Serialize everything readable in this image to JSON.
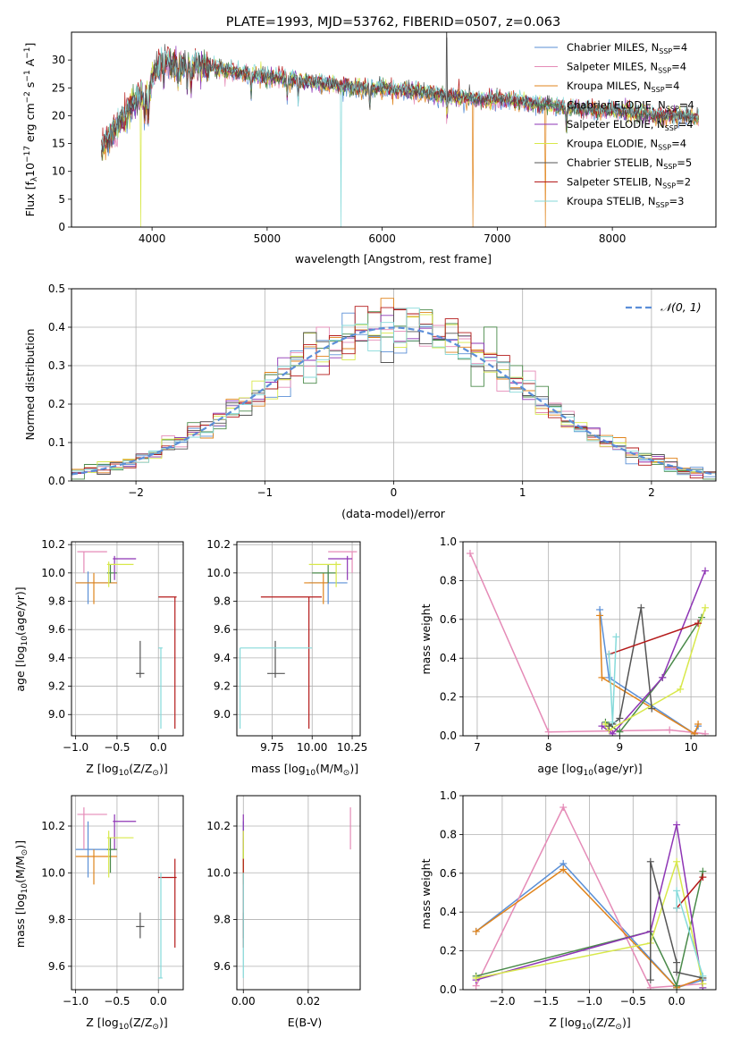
{
  "colors": {
    "chabrier_miles": "#5a8fd6",
    "salpeter_miles": "#e58bb7",
    "kroupa_miles": "#e0841c",
    "chabrier_elodie": "#4a8a4a",
    "salpeter_elodie": "#8e35b5",
    "kroupa_elodie": "#d8e84a",
    "chabrier_stelib": "#555555",
    "salpeter_stelib": "#b41a1a",
    "kroupa_stelib": "#86dada"
  },
  "chart_data": [
    {
      "id": "spectrum",
      "type": "line",
      "title": "PLATE=1993, MJD=53762, FIBERID=0507, z=0.063",
      "xlabel": "wavelength [Angstrom, rest frame]",
      "ylabel_parts": [
        "Flux [f",
        "λ",
        "10",
        "−17",
        " erg cm",
        "−2",
        " s",
        "−1",
        " A",
        "−1",
        "]"
      ],
      "xlim": [
        3300,
        8900
      ],
      "ylim": [
        0,
        35
      ],
      "xticks": [
        "4000",
        "5000",
        "6000",
        "7000",
        "8000"
      ],
      "yticks": [
        "0",
        "5",
        "10",
        "15",
        "20",
        "25",
        "30"
      ],
      "continuum": {
        "x": [
          3560,
          3700,
          3800,
          3900,
          3960,
          4000,
          4100,
          4200,
          4400,
          4600,
          4800,
          5000,
          5200,
          5400,
          5600,
          5800,
          6000,
          6200,
          6400,
          6600,
          6800,
          7000,
          7200,
          7400,
          7600,
          7800,
          8000,
          8200,
          8400,
          8600,
          8750
        ],
        "y": [
          14,
          18,
          21,
          24,
          22,
          27,
          30,
          29,
          29,
          28.5,
          27.5,
          27,
          26.5,
          26,
          25.5,
          25,
          25,
          24.5,
          24,
          23.5,
          23,
          23,
          22.5,
          22,
          21.5,
          21,
          21,
          20.5,
          20,
          20,
          19.5
        ]
      },
      "legend": {
        "placement": "top-right",
        "entries": [
          {
            "label": "Chabrier MILES, N",
            "sub": "SSP",
            "tail": "=4",
            "color_key": "chabrier_miles"
          },
          {
            "label": "Salpeter MILES, N",
            "sub": "SSP",
            "tail": "=4",
            "color_key": "salpeter_miles"
          },
          {
            "label": "Kroupa MILES, N",
            "sub": "SSP",
            "tail": "=4",
            "color_key": "kroupa_miles"
          },
          {
            "label": "Chabrier ELODIE, N",
            "sub": "SSP",
            "tail": "=4",
            "color_key": "chabrier_elodie"
          },
          {
            "label": "Salpeter ELODIE, N",
            "sub": "SSP",
            "tail": "=4",
            "color_key": "salpeter_elodie"
          },
          {
            "label": "Kroupa ELODIE, N",
            "sub": "SSP",
            "tail": "=4",
            "color_key": "kroupa_elodie"
          },
          {
            "label": "Chabrier STELIB, N",
            "sub": "SSP",
            "tail": "=5",
            "color_key": "chabrier_stelib"
          },
          {
            "label": "Salpeter STELIB, N",
            "sub": "SSP",
            "tail": "=2",
            "color_key": "salpeter_stelib"
          },
          {
            "label": "Kroupa STELIB, N",
            "sub": "SSP",
            "tail": "=3",
            "color_key": "kroupa_stelib"
          }
        ]
      }
    },
    {
      "id": "residuals",
      "type": "line",
      "xlabel": "(data-model)/error",
      "ylabel": "Normed distribution",
      "xlim": [
        -2.5,
        2.5
      ],
      "ylim": [
        0,
        0.5
      ],
      "xticks": [
        "−2",
        "−1",
        "0",
        "1",
        "2"
      ],
      "yticks": [
        "0.0",
        "0.1",
        "0.2",
        "0.3",
        "0.4",
        "0.5"
      ],
      "grid": true,
      "legend": {
        "placement": "top-right",
        "label": "𝒩(0, 1)"
      }
    },
    {
      "id": "age_vs_z",
      "type": "scatter",
      "xlabel_parts": [
        "Z [log",
        "10",
        "(Z/Z",
        "⊙",
        ")]"
      ],
      "ylabel_parts": [
        "age  [log",
        "10",
        "(age/yr)]"
      ],
      "xlim": [
        -1.05,
        0.3
      ],
      "ylim": [
        8.85,
        10.22
      ],
      "xticks": [
        "−1.0",
        "−0.5",
        "0.0"
      ],
      "yticks": [
        "9.0",
        "9.2",
        "9.4",
        "9.6",
        "9.8",
        "10.0",
        "10.2"
      ],
      "grid": true
    },
    {
      "id": "age_vs_mass",
      "type": "scatter",
      "xlabel_parts": [
        "mass [log",
        "10",
        "(M/M",
        "⊙",
        ")]"
      ],
      "xlim": [
        9.53,
        10.3
      ],
      "ylim": [
        8.85,
        10.22
      ],
      "xticks": [
        "9.75",
        "10.00",
        "10.25"
      ],
      "yticks": [
        "9.0",
        "9.2",
        "9.4",
        "9.6",
        "9.8",
        "10.0",
        "10.2"
      ],
      "grid": true
    },
    {
      "id": "mw_vs_age",
      "type": "line",
      "xlabel_parts": [
        "age  [log",
        "10",
        "(age/yr)]"
      ],
      "ylabel": "mass weight",
      "xlim": [
        6.8,
        10.35
      ],
      "ylim": [
        0,
        1.0
      ],
      "xticks": [
        "7",
        "8",
        "9",
        "10"
      ],
      "yticks": [
        "0.0",
        "0.2",
        "0.4",
        "0.6",
        "0.8",
        "1.0"
      ],
      "grid": true
    },
    {
      "id": "mass_vs_z",
      "type": "scatter",
      "xlabel_parts": [
        "Z [log",
        "10",
        "(Z/Z",
        "⊙",
        ")]"
      ],
      "ylabel_parts": [
        "mass [log",
        "10",
        "(M/M",
        "⊙",
        ")]"
      ],
      "xlim": [
        -1.05,
        0.3
      ],
      "ylim": [
        9.5,
        10.33
      ],
      "xticks": [
        "−1.0",
        "−0.5",
        "0.0"
      ],
      "yticks": [
        "9.6",
        "9.8",
        "10.0",
        "10.2"
      ],
      "grid": true
    },
    {
      "id": "mass_vs_ebv",
      "type": "scatter",
      "xlabel": "E(B-V)",
      "xlim": [
        -0.002,
        0.036
      ],
      "ylim": [
        9.5,
        10.33
      ],
      "xticks": [
        "0.00",
        "0.02"
      ],
      "yticks": [
        "9.6",
        "9.8",
        "10.0",
        "10.2"
      ],
      "grid": true
    },
    {
      "id": "mw_vs_z",
      "type": "line",
      "xlabel_parts": [
        "Z [log",
        "10",
        "(Z/Z",
        "⊙",
        ")]"
      ],
      "ylabel": "mass weight",
      "xlim": [
        -2.45,
        0.45
      ],
      "ylim": [
        0,
        1.0
      ],
      "xticks": [
        "−2.0",
        "−1.5",
        "−1.0",
        "−0.5",
        "0.0"
      ],
      "yticks": [
        "0.0",
        "0.2",
        "0.4",
        "0.6",
        "0.8",
        "1.0"
      ],
      "grid": true
    }
  ],
  "fits": [
    {
      "key": "chabrier_miles",
      "z": -0.85,
      "z_lo": -1.0,
      "z_hi": -0.52,
      "age": 9.93,
      "age_lo": 9.78,
      "age_hi": 10.01,
      "mass": 10.1,
      "m_lo": 9.98,
      "m_hi": 10.22,
      "ebv": 0.0,
      "ssp_age": [
        8.85,
        8.72,
        10.05,
        10.1
      ],
      "ssp_z": [
        -2.3,
        -1.3,
        0.0,
        0.3
      ],
      "w": [
        0.3,
        0.65,
        0.01,
        0.05
      ]
    },
    {
      "key": "salpeter_miles",
      "z": -0.9,
      "z_lo": -0.98,
      "z_hi": -0.62,
      "age": 10.15,
      "age_lo": 10.0,
      "age_hi": 10.15,
      "mass": 10.25,
      "m_lo": 10.1,
      "m_hi": 10.28,
      "ebv": 0.033,
      "ssp_age": [
        8.0,
        6.9,
        10.2,
        9.7
      ],
      "ssp_z": [
        -2.3,
        -1.3,
        -0.3,
        0.3
      ],
      "w": [
        0.02,
        0.94,
        0.01,
        0.03
      ]
    },
    {
      "key": "kroupa_miles",
      "z": -0.78,
      "z_lo": -1.0,
      "z_hi": -0.5,
      "age": 9.93,
      "age_lo": 9.78,
      "age_hi": 10.0,
      "mass": 10.07,
      "m_lo": 9.95,
      "m_hi": 10.1,
      "ebv": 0.0,
      "ssp_age": [
        8.75,
        8.72,
        10.05,
        10.1
      ],
      "ssp_z": [
        -2.3,
        -1.3,
        0.0,
        0.3
      ],
      "w": [
        0.3,
        0.62,
        0.01,
        0.06
      ]
    },
    {
      "key": "chabrier_elodie",
      "z": -0.58,
      "z_lo": -0.62,
      "z_hi": -0.5,
      "age": 10.0,
      "age_lo": 9.93,
      "age_hi": 10.06,
      "mass": 10.1,
      "m_lo": 10.0,
      "m_hi": 10.15,
      "ebv": 0.0,
      "ssp_age": [
        8.8,
        9.6,
        10.15,
        9.0
      ],
      "ssp_z": [
        -2.3,
        -0.3,
        0.3,
        0.0
      ],
      "w": [
        0.07,
        0.3,
        0.61,
        0.02
      ]
    },
    {
      "key": "salpeter_elodie",
      "z": -0.53,
      "z_lo": -0.55,
      "z_hi": -0.27,
      "age": 10.1,
      "age_lo": 9.95,
      "age_hi": 10.12,
      "mass": 10.22,
      "m_lo": 10.1,
      "m_hi": 10.25,
      "ebv": 0.0,
      "ssp_age": [
        8.75,
        9.6,
        10.2,
        8.9
      ],
      "ssp_z": [
        -2.3,
        -0.3,
        0.0,
        0.3
      ],
      "w": [
        0.05,
        0.3,
        0.85,
        0.01
      ]
    },
    {
      "key": "kroupa_elodie",
      "z": -0.6,
      "z_lo": -0.62,
      "z_hi": -0.3,
      "age": 10.06,
      "age_lo": 9.9,
      "age_hi": 10.08,
      "mass": 10.15,
      "m_lo": 9.98,
      "m_hi": 10.18,
      "ebv": 0.0,
      "ssp_age": [
        8.8,
        9.85,
        10.2,
        8.85
      ],
      "ssp_z": [
        -2.3,
        -0.3,
        0.0,
        0.3
      ],
      "w": [
        0.06,
        0.24,
        0.66,
        0.03
      ]
    },
    {
      "key": "chabrier_stelib",
      "z": -0.22,
      "z_lo": -0.27,
      "z_hi": -0.17,
      "age": 9.29,
      "age_lo": 9.26,
      "age_hi": 9.52,
      "mass": 9.77,
      "m_lo": 9.72,
      "m_hi": 9.83,
      "ebv": 0.0,
      "ssp_age": [
        8.85,
        9.3,
        9.45,
        9.0,
        8.9
      ],
      "ssp_z": [
        -0.3,
        -0.3,
        0.0,
        0.0,
        0.3
      ],
      "w": [
        0.05,
        0.66,
        0.14,
        0.09,
        0.06
      ]
    },
    {
      "key": "salpeter_stelib",
      "z": 0.2,
      "z_lo": 0.0,
      "z_hi": 0.22,
      "age": 9.83,
      "age_lo": 8.9,
      "age_hi": 9.83,
      "mass": 9.98,
      "m_lo": 9.68,
      "m_hi": 10.06,
      "ebv": 0.0,
      "ssp_age": [
        8.85,
        10.1
      ],
      "ssp_z": [
        0.0,
        0.3
      ],
      "w": [
        0.42,
        0.58
      ]
    },
    {
      "key": "kroupa_stelib",
      "z": 0.03,
      "z_lo": 0.0,
      "z_hi": 0.05,
      "age": 9.47,
      "age_lo": 8.9,
      "age_hi": 9.47,
      "mass": 9.55,
      "m_lo": 9.55,
      "m_hi": 10.0,
      "ebv": 0.0,
      "ssp_age": [
        8.85,
        8.95,
        8.9
      ],
      "ssp_z": [
        0.0,
        0.0,
        0.3
      ],
      "w": [
        0.42,
        0.51,
        0.07
      ]
    }
  ]
}
